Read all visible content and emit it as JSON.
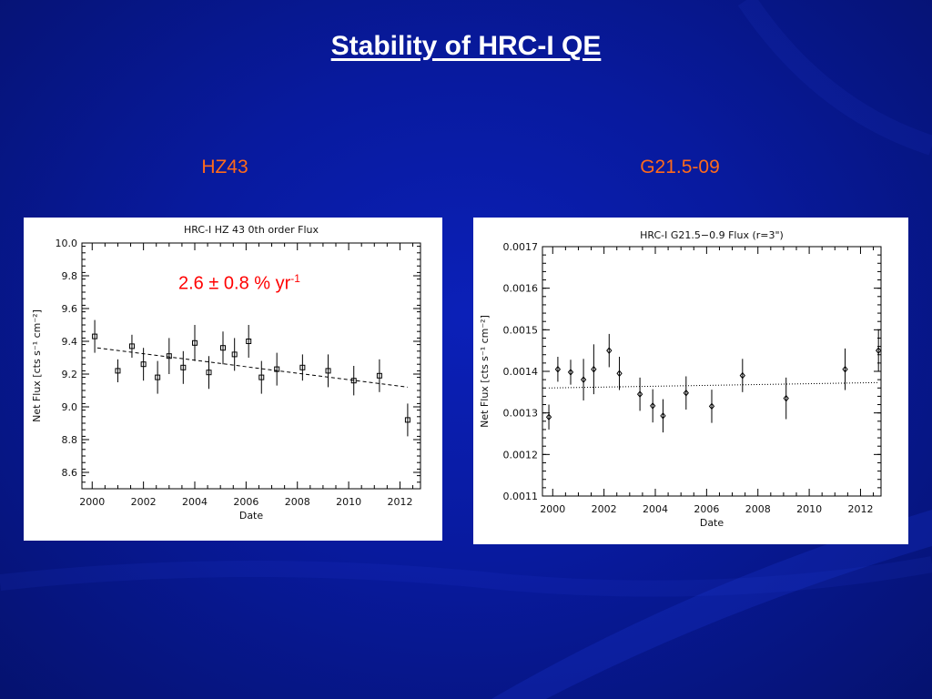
{
  "slide": {
    "title": "Stability of HRC-I QE",
    "left_heading": "HZ43",
    "right_heading": "G21.5-09",
    "colors": {
      "background": "#0a1ca8",
      "heading": "#ff6a1a",
      "annotation": "#ff0000"
    }
  },
  "chart_data": [
    {
      "type": "scatter",
      "title": "HRC-I HZ 43 0th order Flux",
      "xlabel": "Date",
      "ylabel": "Net Flux [cts s⁻¹ cm⁻²]",
      "xlim": [
        1999.6,
        2012.8
      ],
      "ylim": [
        8.5,
        10.0
      ],
      "xticks": [
        2000,
        2002,
        2004,
        2006,
        2008,
        2010,
        2012
      ],
      "xtick_labels": [
        "2000",
        "2002",
        "2004",
        "2006",
        "2008",
        "2010",
        "2012"
      ],
      "yticks": [
        8.6,
        8.8,
        9.0,
        9.2,
        9.4,
        9.6,
        9.8,
        10.0
      ],
      "ytick_labels": [
        "8.6",
        "8.8",
        "9.0",
        "9.2",
        "9.4",
        "9.6",
        "9.8",
        "10.0"
      ],
      "marker": "square",
      "annotation": {
        "value": "2.6 ± 0.8 % yr",
        "superscript": "-1"
      },
      "series": [
        {
          "x": [
            2000.1,
            2001.0,
            2001.55,
            2002.0,
            2002.55,
            2003.0,
            2003.55,
            2004.0,
            2004.55,
            2005.1,
            2005.55,
            2006.1,
            2006.6,
            2007.2,
            2008.2,
            2009.2,
            2010.2,
            2011.2,
            2012.3
          ],
          "y": [
            9.43,
            9.22,
            9.37,
            9.26,
            9.18,
            9.31,
            9.24,
            9.39,
            9.21,
            9.36,
            9.32,
            9.4,
            9.18,
            9.23,
            9.24,
            9.22,
            9.16,
            9.19,
            8.92
          ],
          "err": [
            0.1,
            0.07,
            0.07,
            0.1,
            0.1,
            0.11,
            0.1,
            0.11,
            0.1,
            0.1,
            0.1,
            0.1,
            0.1,
            0.1,
            0.08,
            0.1,
            0.09,
            0.1,
            0.1
          ]
        }
      ],
      "fit": {
        "style": "dashed",
        "x": [
          2000.2,
          2012.3
        ],
        "y": [
          9.36,
          9.12
        ]
      }
    },
    {
      "type": "scatter",
      "title": "HRC-I G21.5−0.9 Flux (r=3\")",
      "xlabel": "Date",
      "ylabel": "Net Flux [cts s⁻¹ cm⁻²]",
      "xlim": [
        1999.6,
        2012.8
      ],
      "ylim": [
        0.0011,
        0.0017
      ],
      "xticks": [
        2000,
        2002,
        2004,
        2006,
        2008,
        2010,
        2012
      ],
      "xtick_labels": [
        "2000",
        "2002",
        "2004",
        "2006",
        "2008",
        "2010",
        "2012"
      ],
      "yticks": [
        0.0011,
        0.0012,
        0.0013,
        0.0014,
        0.0015,
        0.0016,
        0.0017
      ],
      "ytick_labels": [
        "0.0011",
        "0.0012",
        "0.0013",
        "0.0014",
        "0.0015",
        "0.0016",
        "0.0017"
      ],
      "marker": "diamond",
      "series": [
        {
          "x": [
            1999.85,
            2000.2,
            2000.7,
            2001.2,
            2001.6,
            2002.2,
            2002.6,
            2003.4,
            2003.9,
            2004.3,
            2005.2,
            2006.2,
            2007.4,
            2009.1,
            2011.4,
            2012.7
          ],
          "y": [
            0.00129,
            0.001405,
            0.001398,
            0.00138,
            0.001405,
            0.00145,
            0.001395,
            0.001345,
            0.001317,
            0.001293,
            0.001348,
            0.001316,
            0.00139,
            0.001335,
            0.001405,
            0.00145
          ],
          "err": [
            3e-05,
            3e-05,
            3e-05,
            5e-05,
            6e-05,
            4e-05,
            4e-05,
            4e-05,
            4e-05,
            4e-05,
            4e-05,
            4e-05,
            4e-05,
            5e-05,
            5e-05,
            5e-05
          ]
        }
      ],
      "fit": {
        "style": "dotted",
        "x": [
          1999.85,
          2012.7
        ],
        "y": [
          0.00136,
          0.001373
        ]
      }
    }
  ]
}
